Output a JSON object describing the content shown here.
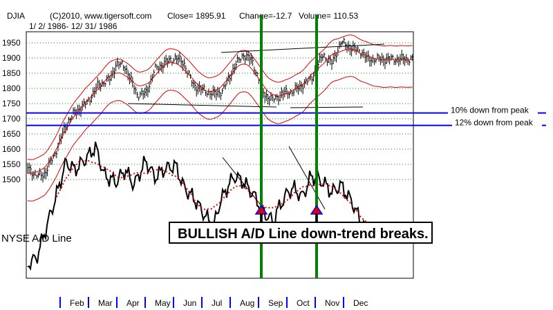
{
  "header": {
    "symbol": "DJIA",
    "source": "(C)2010, www.tigersoft.com",
    "close_text": "Close=  1895.91",
    "change_text": "Change=-12.7",
    "volume_text": "Volume= 110.53",
    "date_range": "1/ 2/ 1986- 12/ 31/ 1986"
  },
  "colors": {
    "price": "#000000",
    "band": "#e00000",
    "support_line": "#0000ff",
    "vertical_marker": "#008000",
    "ad_line": "#000000",
    "ad_ma": "#e00000",
    "arrow_fill": "#e00000",
    "arrow_outline": "#0000ff"
  },
  "chart_data": {
    "type": "line",
    "xlabel": "",
    "ylabel": "",
    "ylim": [
      1430,
      2010
    ],
    "yticks": [
      "1950",
      "1900",
      "1850",
      "1800",
      "1750",
      "1700",
      "1650",
      "1600",
      "1550",
      "1500"
    ],
    "xticks": [
      "Feb",
      "Mar",
      "Apr",
      "May",
      "Jun",
      "Jul",
      "Aug",
      "Sep",
      "Oct",
      "Nov",
      "Dec"
    ],
    "horizontal_lines": [
      {
        "value": 1719,
        "label": "10% down from peak"
      },
      {
        "value": 1678,
        "label": "12% down from peak"
      }
    ],
    "vertical_markers": [
      "Aug",
      "Sep/Oct"
    ],
    "series": [
      {
        "name": "DJIA",
        "x": [
          1.0,
          1.3,
          1.6,
          2.0,
          2.3,
          2.6,
          3.0,
          3.4,
          3.8,
          4.0,
          4.3,
          4.7,
          5.0,
          5.3,
          5.6,
          6.0,
          6.3,
          6.6,
          7.0,
          7.3,
          7.6,
          8.0,
          8.3,
          8.6,
          9.0,
          9.3,
          9.6,
          10.0,
          10.3,
          10.6,
          11.0,
          11.3,
          11.6,
          12.0,
          12.3,
          12.5
        ],
        "values": [
          1540,
          1510,
          1520,
          1600,
          1680,
          1720,
          1750,
          1810,
          1830,
          1880,
          1870,
          1780,
          1780,
          1860,
          1880,
          1900,
          1880,
          1810,
          1790,
          1780,
          1790,
          1870,
          1910,
          1890,
          1780,
          1760,
          1780,
          1790,
          1810,
          1830,
          1910,
          1880,
          1950,
          1930,
          1920,
          1895
        ]
      }
    ],
    "ad_line": {
      "name": "NYSE A/D Line",
      "x": [
        1.0,
        1.3,
        1.6,
        2.0,
        2.3,
        2.6,
        3.0,
        3.3,
        3.6,
        4.0,
        4.3,
        4.6,
        5.0,
        5.3,
        5.6,
        6.0,
        6.3,
        6.6,
        7.0,
        7.3,
        7.5,
        7.8,
        8.0,
        8.3,
        8.6,
        9.0,
        9.3,
        9.5,
        9.8,
        10.0,
        10.3,
        10.6,
        11.0,
        11.3,
        11.6,
        12.0,
        12.3,
        12.5
      ],
      "values": [
        0.08,
        0.12,
        0.3,
        0.55,
        0.75,
        0.7,
        0.78,
        0.85,
        0.66,
        0.62,
        0.7,
        0.6,
        0.76,
        0.65,
        0.7,
        0.73,
        0.58,
        0.52,
        0.4,
        0.33,
        0.48,
        0.6,
        0.66,
        0.62,
        0.55,
        0.42,
        0.36,
        0.45,
        0.55,
        0.58,
        0.52,
        0.66,
        0.62,
        0.55,
        0.6,
        0.48,
        0.35,
        0.3
      ]
    },
    "ad_ma_label": ""
  },
  "annotations": {
    "series_label": "NYSE A/D Line",
    "callout": "BULLISH A/D Line down-trend breaks."
  }
}
